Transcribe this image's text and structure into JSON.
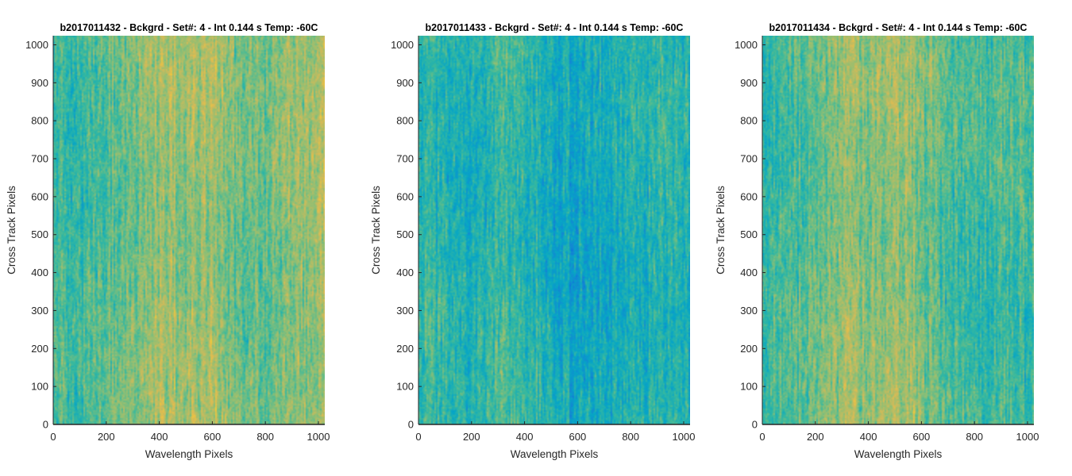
{
  "chart_data": [
    {
      "type": "heatmap",
      "title": "b2017011432 - Bckgrd - Set#: 4 - Int 0.144 s Temp: -60C",
      "xlabel": "Wavelength Pixels",
      "ylabel": "Cross Track Pixels",
      "xlim": [
        0,
        1024
      ],
      "ylim": [
        0,
        1024
      ],
      "xticks": [
        0,
        200,
        400,
        600,
        800,
        1000
      ],
      "yticks": [
        0,
        100,
        200,
        300,
        400,
        500,
        600,
        700,
        800,
        900,
        1000
      ],
      "colormap": "parula",
      "mean_level": 0.58,
      "column_profile": [
        [
          0,
          0.52
        ],
        [
          100,
          0.5
        ],
        [
          200,
          0.55
        ],
        [
          300,
          0.58
        ],
        [
          420,
          0.66
        ],
        [
          520,
          0.63
        ],
        [
          600,
          0.66
        ],
        [
          700,
          0.58
        ],
        [
          800,
          0.56
        ],
        [
          900,
          0.62
        ],
        [
          1024,
          0.66
        ]
      ]
    },
    {
      "type": "heatmap",
      "title": "b2017011433 - Bckgrd - Set#: 4 - Int 0.144 s Temp: -60C",
      "xlabel": "Wavelength Pixels",
      "ylabel": "Cross Track Pixels",
      "xlim": [
        0,
        1024
      ],
      "ylim": [
        0,
        1024
      ],
      "xticks": [
        0,
        200,
        400,
        600,
        800,
        1000
      ],
      "yticks": [
        0,
        100,
        200,
        300,
        400,
        500,
        600,
        700,
        800,
        900,
        1000
      ],
      "colormap": "parula",
      "mean_level": 0.44,
      "column_profile": [
        [
          0,
          0.48
        ],
        [
          100,
          0.45
        ],
        [
          200,
          0.44
        ],
        [
          320,
          0.5
        ],
        [
          420,
          0.46
        ],
        [
          520,
          0.4
        ],
        [
          620,
          0.38
        ],
        [
          720,
          0.4
        ],
        [
          820,
          0.44
        ],
        [
          920,
          0.46
        ],
        [
          1024,
          0.44
        ]
      ]
    },
    {
      "type": "heatmap",
      "title": "b2017011434 - Bckgrd - Set#: 4 - Int 0.144 s Temp: -60C",
      "xlabel": "Wavelength Pixels",
      "ylabel": "Cross Track Pixels",
      "xlim": [
        0,
        1024
      ],
      "ylim": [
        0,
        1024
      ],
      "xticks": [
        0,
        200,
        400,
        600,
        800,
        1000
      ],
      "yticks": [
        0,
        100,
        200,
        300,
        400,
        500,
        600,
        700,
        800,
        900,
        1000
      ],
      "colormap": "parula",
      "mean_level": 0.55,
      "column_profile": [
        [
          0,
          0.5
        ],
        [
          100,
          0.52
        ],
        [
          200,
          0.56
        ],
        [
          300,
          0.62
        ],
        [
          420,
          0.62
        ],
        [
          520,
          0.64
        ],
        [
          620,
          0.58
        ],
        [
          720,
          0.5
        ],
        [
          820,
          0.5
        ],
        [
          920,
          0.52
        ],
        [
          1024,
          0.5
        ]
      ]
    }
  ]
}
